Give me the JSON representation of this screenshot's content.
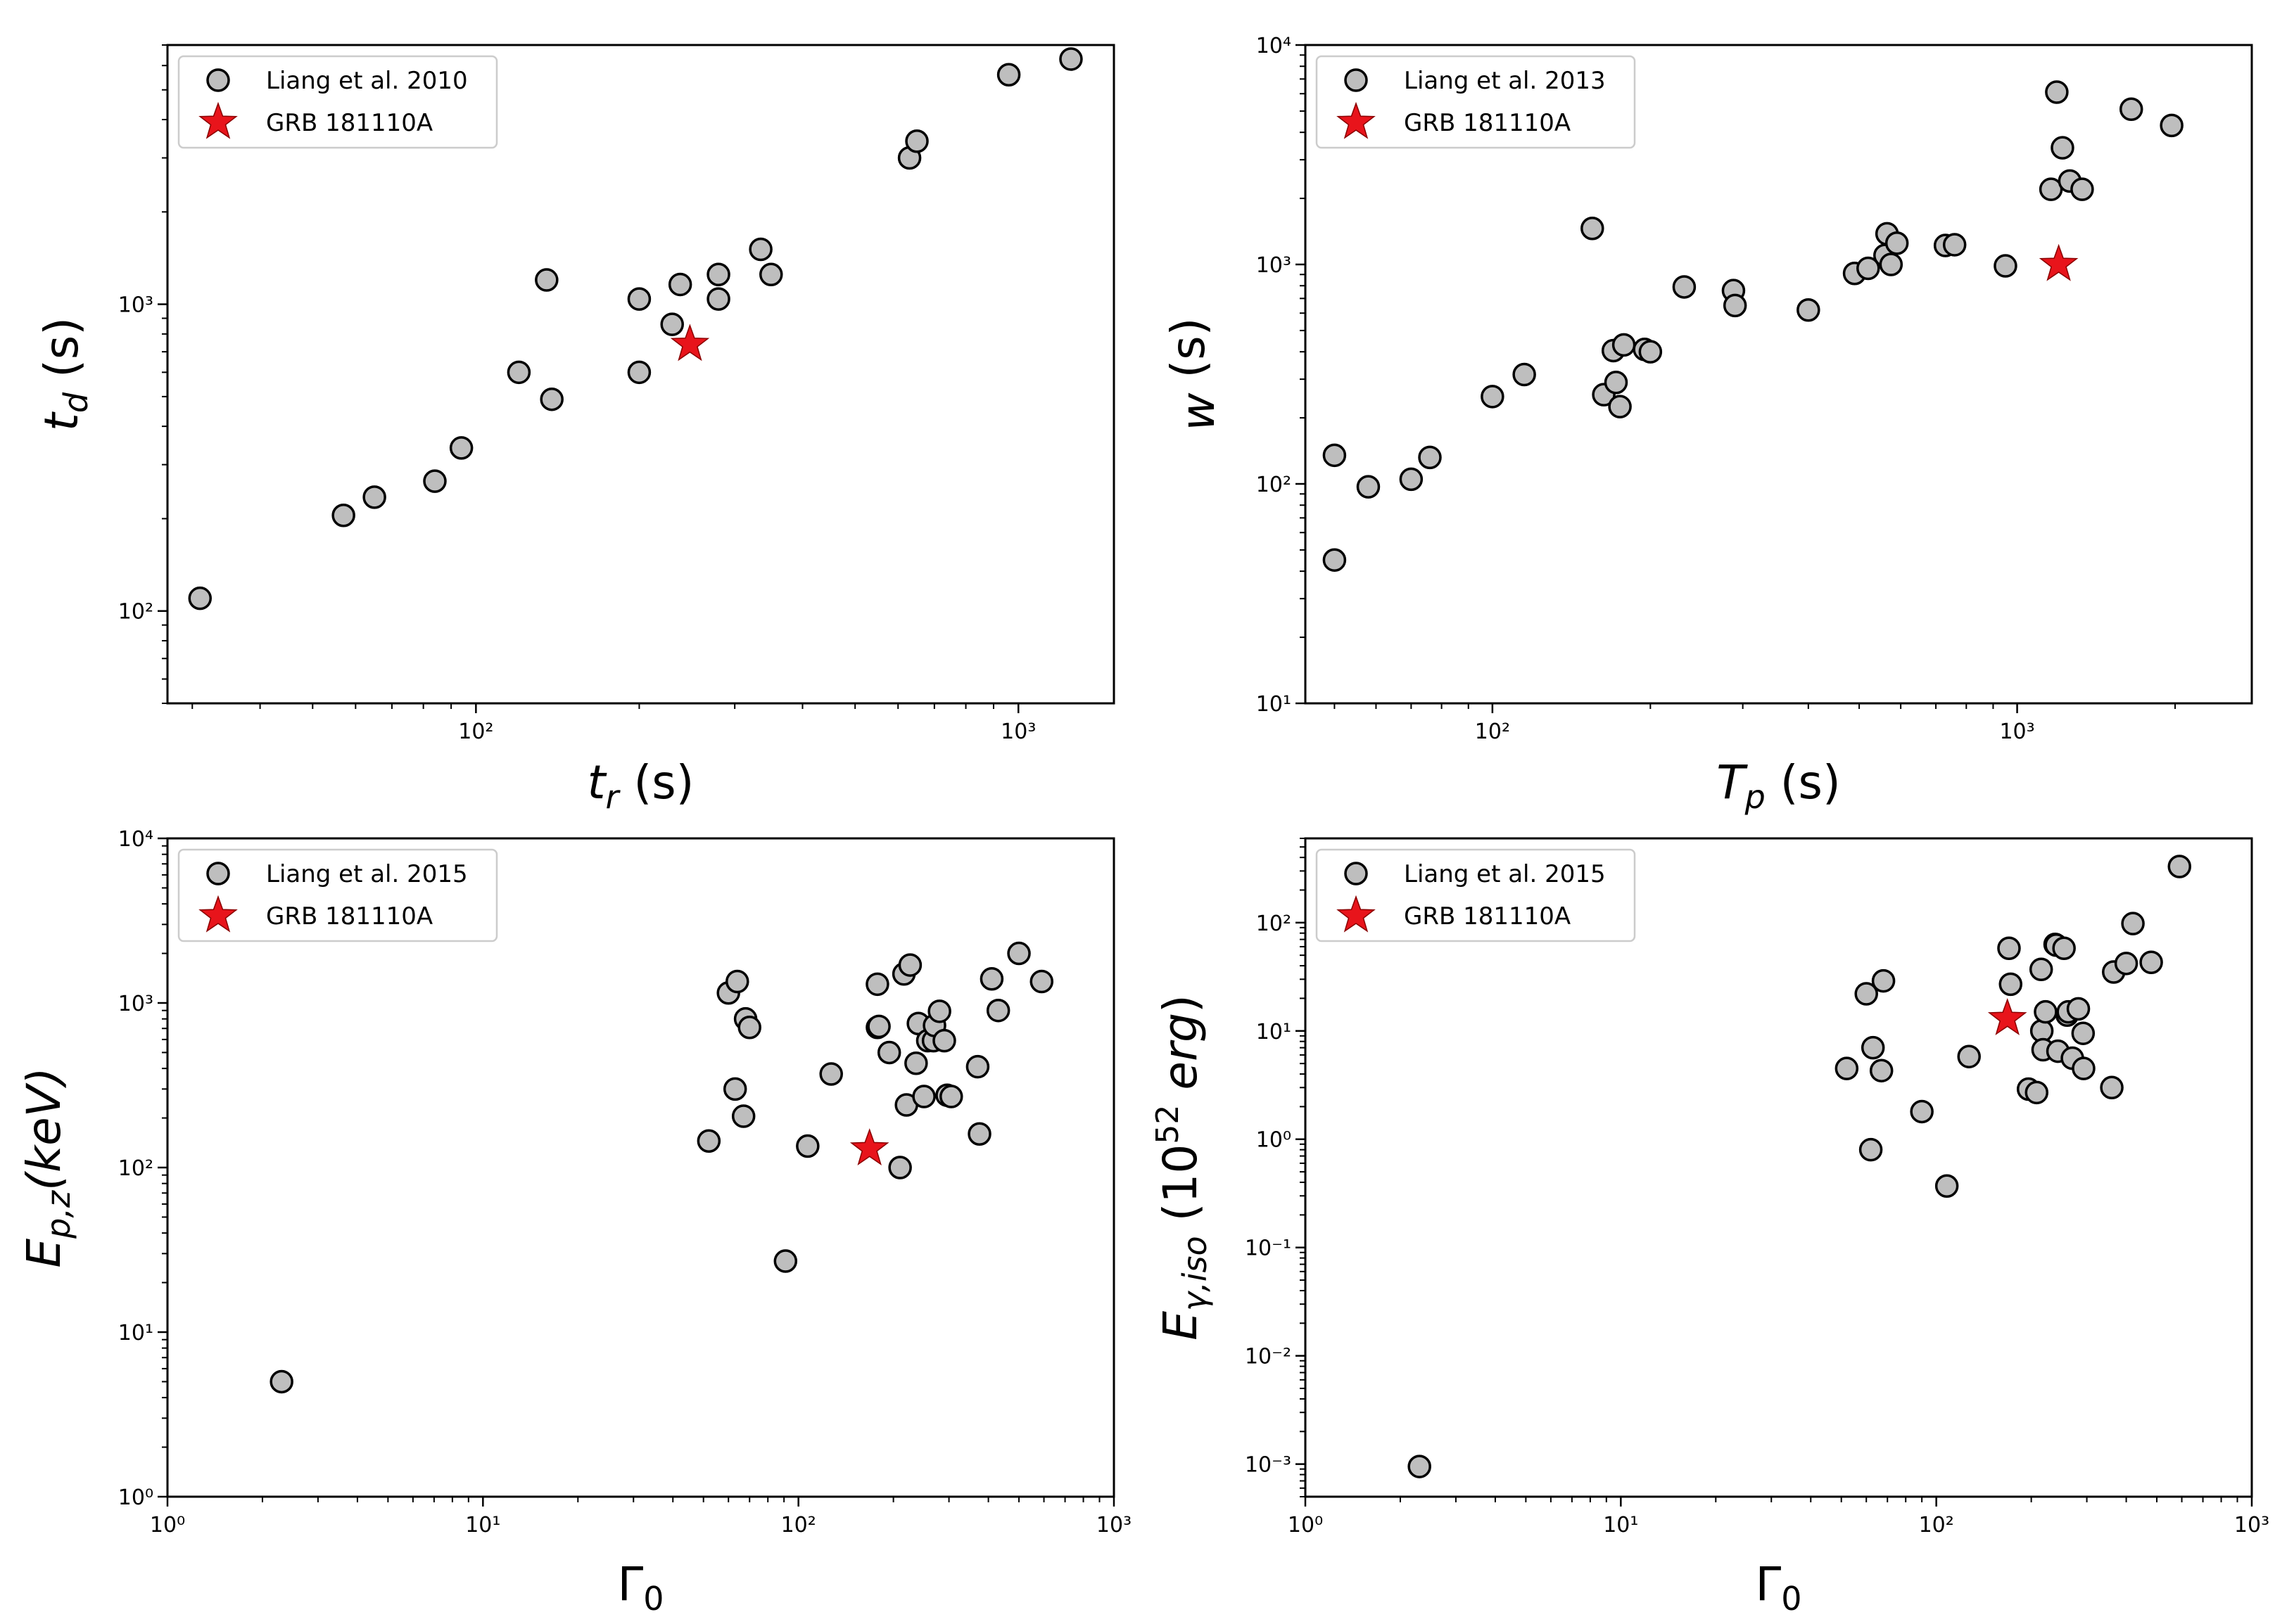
{
  "figure": {
    "marker_fill": "#bebebe",
    "marker_edge": "#000000",
    "star_color": "#e8141b",
    "errorbar_color": "#dddddd"
  },
  "chart_data": [
    {
      "type": "scatter",
      "title": "",
      "xscale": "log",
      "yscale": "log",
      "xlim": [
        27,
        1500
      ],
      "ylim": [
        50,
        7000
      ],
      "xticks": [
        100,
        1000
      ],
      "xtick_labels": [
        "10²",
        "10³"
      ],
      "yticks": [
        100,
        1000
      ],
      "ytick_labels": [
        "10²",
        "10³"
      ],
      "xlabel": {
        "var": "t",
        "sub": "r",
        "unit": " (s)"
      },
      "ylabel": {
        "var": "t",
        "sub": "d",
        "unit": " (s)"
      },
      "legend_position": "top-left",
      "series": [
        {
          "name": "Liang et al. 2010",
          "marker": "circle",
          "x": [
            31,
            57,
            65,
            84,
            94,
            120,
            135,
            138,
            200,
            200,
            230,
            238,
            280,
            280,
            335,
            350,
            630,
            650,
            960,
            1250
          ],
          "y": [
            110,
            205,
            235,
            265,
            340,
            600,
            1200,
            490,
            1040,
            600,
            860,
            1160,
            1250,
            1040,
            1510,
            1250,
            3000,
            3400,
            5600,
            6300
          ]
        },
        {
          "name": "GRB 181110A",
          "marker": "star",
          "x": [
            248
          ],
          "y": [
            740
          ]
        }
      ]
    },
    {
      "type": "scatter",
      "title": "",
      "xscale": "log",
      "yscale": "log",
      "xlim": [
        44,
        2800
      ],
      "ylim": [
        10,
        10000
      ],
      "xticks": [
        100,
        1000
      ],
      "xtick_labels": [
        "10²",
        "10³"
      ],
      "yticks": [
        10,
        100,
        1000,
        10000
      ],
      "ytick_labels": [
        "10¹",
        "10²",
        "10³",
        "10⁴"
      ],
      "xlabel": {
        "var": "T",
        "sub": "p",
        "unit": " (s)"
      },
      "ylabel": {
        "var": "w",
        "sub": "",
        "unit": " (s)"
      },
      "legend_position": "top-left",
      "series": [
        {
          "name": "Liang et al. 2013",
          "marker": "circle",
          "x": [
            50,
            50,
            58,
            70,
            76,
            100,
            115,
            155,
            163,
            170,
            175,
            172,
            178,
            195,
            200,
            232,
            288,
            290,
            400,
            490,
            520,
            560,
            565,
            590,
            575,
            730,
            760,
            950,
            1160,
            1190,
            1220,
            1260,
            1330,
            1650,
            1970
          ],
          "y": [
            135,
            45,
            97,
            105,
            132,
            250,
            315,
            1460,
            255,
            405,
            225,
            290,
            430,
            410,
            400,
            790,
            760,
            650,
            620,
            910,
            960,
            1100,
            1380,
            1250,
            1000,
            1220,
            1230,
            985,
            2200,
            6100,
            3400,
            2400,
            2200,
            5100,
            4300
          ]
        },
        {
          "name": "GRB 181110A",
          "marker": "star",
          "x": [
            1200
          ],
          "y": [
            1000
          ]
        }
      ]
    },
    {
      "type": "scatter",
      "title": "",
      "xscale": "log",
      "yscale": "log",
      "xlim": [
        1,
        1000
      ],
      "ylim": [
        1,
        10000
      ],
      "xticks": [
        1,
        10,
        100,
        1000
      ],
      "xtick_labels": [
        "10⁰",
        "10¹",
        "10²",
        "10³"
      ],
      "yticks": [
        1,
        10,
        100,
        1000,
        10000
      ],
      "ytick_labels": [
        "10⁰",
        "10¹",
        "10²",
        "10³",
        "10⁴"
      ],
      "xlabel": {
        "var": "Γ",
        "sub": "0",
        "unit": ""
      },
      "ylabel": {
        "var": "E",
        "sub": "p,z",
        "unit": "(keV)"
      },
      "legend_position": "top-left",
      "series": [
        {
          "name": "Liang et al. 2015",
          "marker": "circle",
          "x": [
            2.3,
            52,
            60,
            63,
            64,
            67,
            68,
            70,
            91,
            107,
            127,
            178,
            178,
            180,
            194,
            210,
            216,
            220,
            226,
            236,
            240,
            250,
            257,
            268,
            270,
            280,
            290,
            296,
            305,
            370,
            375,
            410,
            430,
            500,
            590
          ],
          "y": [
            5,
            145,
            1150,
            300,
            1350,
            205,
            800,
            710,
            27,
            135,
            370,
            1300,
            710,
            720,
            500,
            100,
            1500,
            240,
            1700,
            430,
            750,
            270,
            590,
            590,
            730,
            890,
            590,
            275,
            270,
            410,
            160,
            1400,
            900,
            2000,
            1350
          ]
        },
        {
          "name": "GRB 181110A",
          "marker": "star",
          "x": [
            168
          ],
          "y": [
            130
          ]
        }
      ]
    },
    {
      "type": "scatter",
      "title": "",
      "xscale": "log",
      "yscale": "log",
      "xlim": [
        1,
        1000
      ],
      "ylim": [
        0.0005,
        600
      ],
      "xticks": [
        1,
        10,
        100,
        1000
      ],
      "xtick_labels": [
        "10⁰",
        "10¹",
        "10²",
        "10³"
      ],
      "yticks": [
        0.001,
        0.01,
        0.1,
        1,
        10,
        100
      ],
      "ytick_labels": [
        "10⁻³",
        "10⁻²",
        "10⁻¹",
        "10⁰",
        "10¹",
        "10²"
      ],
      "xlabel": {
        "var": "Γ",
        "sub": "0",
        "unit": ""
      },
      "ylabel": {
        "var": "E",
        "sub": "γ,iso",
        "unit": "(10^52 erg)"
      },
      "legend_position": "top-left",
      "series": [
        {
          "name": "Liang et al. 2015",
          "marker": "circle",
          "x": [
            2.3,
            52,
            60,
            62,
            63,
            67,
            68,
            90,
            108,
            127,
            170,
            172,
            196,
            208,
            215,
            216,
            218,
            222,
            238,
            240,
            243,
            254,
            260,
            262,
            270,
            282,
            292,
            293,
            360,
            365,
            400,
            420,
            480,
            590
          ],
          "y": [
            0.00095,
            4.5,
            22,
            0.8,
            7,
            4.3,
            29,
            1.8,
            0.37,
            5.8,
            58,
            27,
            2.9,
            2.7,
            37,
            10,
            6.7,
            15,
            63,
            62,
            6.5,
            58,
            14,
            15,
            5.6,
            16,
            9.5,
            4.5,
            3,
            35,
            42,
            98,
            43,
            330
          ]
        },
        {
          "name": "GRB 181110A",
          "marker": "star",
          "x": [
            168
          ],
          "y": [
            13
          ]
        }
      ]
    }
  ]
}
